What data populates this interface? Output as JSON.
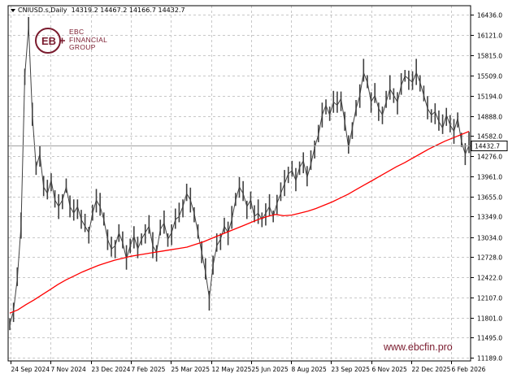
{
  "header": {
    "symbol": "CNIUSD.s,Daily",
    "ohlc": "14319.2 14467.2 14166.7 14432.7"
  },
  "brand": {
    "line1": "EBC",
    "line2": "FINANCIAL",
    "line3": "GROUP",
    "website": "www.ebcfin.pro",
    "color": "#7a1b2e"
  },
  "current_price_label": "14432.7",
  "colors": {
    "price": "#404040",
    "ma": "#ff0000",
    "grid": "#c8c8c8"
  },
  "chart_data": {
    "type": "line",
    "y_ticks": [
      "16436.0",
      "16121.0",
      "15815.0",
      "15509.0",
      "15194.0",
      "14888.0",
      "14582.0",
      "14276.0",
      "13961.0",
      "13655.0",
      "13349.0",
      "13034.0",
      "12728.0",
      "12422.0",
      "12107.0",
      "11801.0",
      "11495.0",
      "11189.0"
    ],
    "x_ticks": [
      "24 Sep 2024",
      "7 Nov 2024",
      "23 Dec 2024",
      "7 Feb 2025",
      "25 Mar 2025",
      "12 May 2025",
      "25 Jun 2025",
      "8 Aug 2025",
      "23 Sep 2025",
      "6 Nov 2025",
      "22 Dec 2025",
      "6 Feb 2026"
    ],
    "ylim": [
      11160,
      16500
    ],
    "grid": true,
    "series": [
      {
        "values": [
          11700,
          11900,
          12400,
          13200,
          15500,
          16250,
          14900,
          14100,
          14300,
          13800,
          13700,
          13900,
          13600,
          13500,
          13600,
          13800,
          13500,
          13400,
          13500,
          13300,
          13200,
          13100,
          13400,
          13600,
          13500,
          13300,
          13000,
          12850,
          12900,
          13100,
          12950,
          12700,
          12900,
          13050,
          12850,
          13000,
          13100,
          13200,
          12900,
          12800,
          13150,
          13250,
          13000,
          13100,
          13300,
          13350,
          13500,
          13700,
          13600,
          13400,
          13100,
          12800,
          12500,
          12100,
          12600,
          12900,
          13000,
          13200,
          13100,
          13300,
          13600,
          13800,
          13700,
          13500,
          13600,
          13350,
          13400,
          13300,
          13400,
          13500,
          13350,
          13550,
          13700,
          13850,
          14000,
          14050,
          13900,
          14100,
          14200,
          13950,
          14150,
          14400,
          14600,
          14900,
          15050,
          14900,
          15100,
          15050,
          15150,
          14800,
          14400,
          14700,
          15000,
          15200,
          15550,
          15400,
          15100,
          15200,
          15000,
          14900,
          15100,
          15300,
          15200,
          15100,
          15350,
          15500,
          15450,
          15400,
          15550,
          15400,
          15200,
          15000,
          14900,
          14950,
          14800,
          14700,
          14900,
          14750,
          14650,
          14850,
          14500,
          14300,
          14433
        ]
      },
      {
        "values": [
          11870,
          11920,
          12000,
          12070,
          12150,
          12230,
          12310,
          12380,
          12440,
          12500,
          12550,
          12600,
          12640,
          12680,
          12710,
          12740,
          12760,
          12780,
          12800,
          12820,
          12840,
          12860,
          12880,
          12920,
          12960,
          13010,
          13060,
          13110,
          13160,
          13210,
          13260,
          13310,
          13350,
          13380,
          13360,
          13370,
          13400,
          13430,
          13470,
          13520,
          13570,
          13630,
          13690,
          13760,
          13830,
          13900,
          13970,
          14040,
          14110,
          14170,
          14240,
          14310,
          14380,
          14440,
          14500,
          14550,
          14600,
          14650
        ]
      }
    ]
  }
}
